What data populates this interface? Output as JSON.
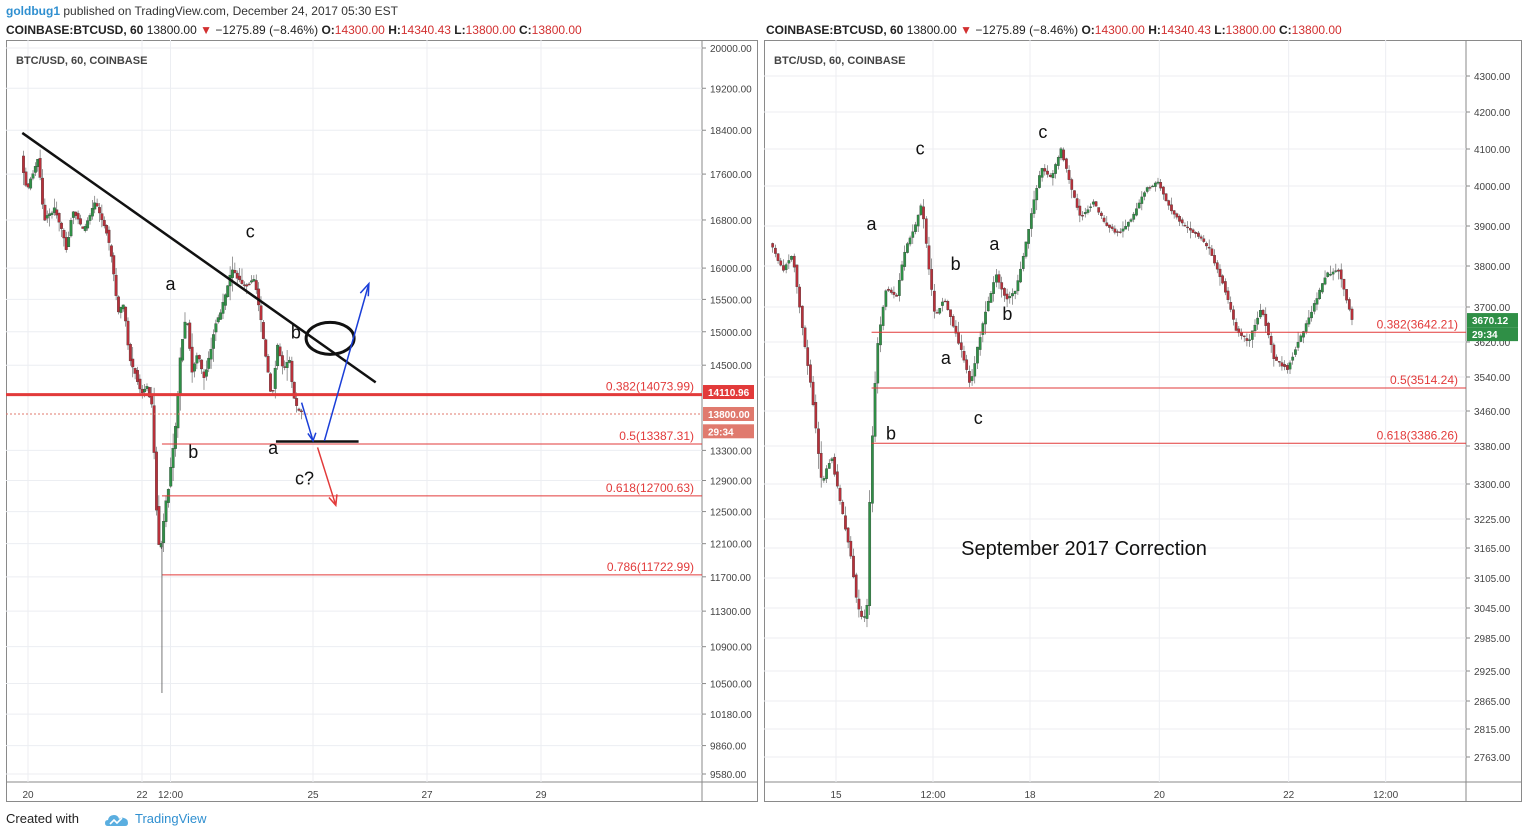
{
  "header": {
    "author": "goldbug1",
    "published_text": "published on TradingView.com, December 24, 2017 05:30 EST"
  },
  "colors": {
    "up": "#2f8f46",
    "down": "#b7303a",
    "fib": "#e23a3a",
    "brand": "#2f8fd0"
  },
  "footer": {
    "created_with": "Created with",
    "brand": "TradingView",
    "icon": "tradingview-cloud-icon"
  },
  "panels": [
    {
      "symbol": "COINBASE:BTCUSD, 60",
      "price": "13800.00",
      "arrow": "▼",
      "change": "−1275.89 (−8.46%)",
      "o_label": "O:",
      "o": "14300.00",
      "h_label": "H:",
      "h": "14340.43",
      "l_label": "L:",
      "l": "13800.00",
      "c_label": "C:",
      "c": "13800.00",
      "chart_label": "BTC/USD, 60, COINBASE"
    },
    {
      "symbol": "COINBASE:BTCUSD, 60",
      "price": "13800.00",
      "arrow": "▼",
      "change": "−1275.89 (−8.46%)",
      "o_label": "O:",
      "o": "14300.00",
      "h_label": "H:",
      "h": "14340.43",
      "l_label": "L:",
      "l": "13800.00",
      "c_label": "C:",
      "c": "13800.00",
      "chart_label": "BTC/USD, 60, COINBASE"
    }
  ],
  "chart_data": [
    {
      "type": "candlestick",
      "title": "BTC/USD, 60, COINBASE",
      "y_scale": "log",
      "y_ticks": [
        20000,
        19200,
        18400,
        17600,
        16800,
        16000,
        15500,
        15000,
        14500,
        13300,
        12900,
        12500,
        12100,
        11700,
        11300,
        10900,
        10500,
        10180,
        9860,
        9580
      ],
      "y_tick_labels": [
        "20000.00",
        "19200.00",
        "18400.00",
        "17600.00",
        "16800.00",
        "16000.00",
        "15500.00",
        "15000.00",
        "14500.00",
        "13300.00",
        "12900.00",
        "12500.00",
        "12100.00",
        "11700.00",
        "11300.00",
        "10900.00",
        "10500.00",
        "10180.00",
        "9860.00",
        "9580.00"
      ],
      "x_tick_labels": [
        "20",
        "22",
        "12:00",
        "25",
        "27",
        "29"
      ],
      "x_ticks_day": [
        20,
        22,
        22.5,
        25,
        27,
        29
      ],
      "x_range_day": [
        19.9,
        30.0
      ],
      "close_path": [
        [
          19.9,
          17900
        ],
        [
          20.0,
          17300
        ],
        [
          20.2,
          17900
        ],
        [
          20.3,
          16800
        ],
        [
          20.5,
          17000
        ],
        [
          20.7,
          16300
        ],
        [
          20.8,
          17000
        ],
        [
          21.0,
          16600
        ],
        [
          21.2,
          17100
        ],
        [
          21.4,
          16600
        ],
        [
          21.5,
          16100
        ],
        [
          21.6,
          15300
        ],
        [
          21.7,
          15400
        ],
        [
          21.8,
          14600
        ],
        [
          21.9,
          14400
        ],
        [
          22.0,
          14100
        ],
        [
          22.1,
          14200
        ],
        [
          22.2,
          13900
        ],
        [
          22.3,
          12100
        ],
        [
          22.35,
          12050
        ],
        [
          22.4,
          12400
        ],
        [
          22.5,
          12900
        ],
        [
          22.6,
          13500
        ],
        [
          22.7,
          14700
        ],
        [
          22.8,
          15300
        ],
        [
          22.9,
          14400
        ],
        [
          23.0,
          14700
        ],
        [
          23.1,
          14300
        ],
        [
          23.2,
          14600
        ],
        [
          23.3,
          15100
        ],
        [
          23.4,
          15300
        ],
        [
          23.5,
          15600
        ],
        [
          23.6,
          16000
        ],
        [
          23.8,
          15700
        ],
        [
          24.0,
          15800
        ],
        [
          24.1,
          15200
        ],
        [
          24.2,
          14600
        ],
        [
          24.3,
          14000
        ],
        [
          24.4,
          14800
        ],
        [
          24.5,
          14400
        ],
        [
          24.6,
          14600
        ],
        [
          24.7,
          13950
        ],
        [
          24.8,
          13800
        ]
      ],
      "waves": [
        {
          "label": "a",
          "day": 22.5,
          "price": 15650
        },
        {
          "label": "b",
          "day": 22.9,
          "price": 13200
        },
        {
          "label": "c",
          "day": 23.9,
          "price": 16500
        },
        {
          "label": "a",
          "day": 24.3,
          "price": 13250
        },
        {
          "label": "b",
          "day": 24.7,
          "price": 14900
        },
        {
          "label": "c?",
          "day": 24.85,
          "price": 12850
        }
      ],
      "fib_levels": [
        {
          "label": "0.382(14073.99)",
          "price": 14073.99,
          "from_day": 19.9
        },
        {
          "label": "0.5(13387.31)",
          "price": 13387.31,
          "from_day": 22.35
        },
        {
          "label": "0.618(12700.63)",
          "price": 12700.63,
          "from_day": 22.35
        },
        {
          "label": "0.786(11722.99)",
          "price": 11722.99,
          "from_day": 22.35
        }
      ],
      "price_tags": [
        {
          "label": "14110.96",
          "price": 14110.96,
          "color": "#e23a3a"
        },
        {
          "label": "13800.00",
          "price": 13800,
          "color": "#e07a6e"
        },
        {
          "label": "29:34",
          "price": 13560,
          "color": "#e07a6e"
        }
      ]
    },
    {
      "type": "candlestick",
      "title": "BTC/USD, 60, COINBASE",
      "y_scale": "linear",
      "y_ticks": [
        4300,
        4200,
        4100,
        4000,
        3900,
        3800,
        3700,
        3620,
        3540,
        3460,
        3380,
        3300,
        3225,
        3165,
        3105,
        3045,
        2985,
        2925,
        2865,
        2815,
        2763
      ],
      "y_tick_labels": [
        "4300.00",
        "4200.00",
        "4100.00",
        "4000.00",
        "3900.00",
        "3800.00",
        "3700.00",
        "3620.00",
        "3540.00",
        "3460.00",
        "3380.00",
        "3300.00",
        "3225.00",
        "3165.00",
        "3105.00",
        "3045.00",
        "2985.00",
        "2925.00",
        "2865.00",
        "2815.00",
        "2763.00"
      ],
      "x_tick_labels": [
        "15",
        "12:00",
        "18",
        "20",
        "22",
        "12:00"
      ],
      "x_ticks_day": [
        15,
        16.5,
        18,
        20,
        22,
        23.5
      ],
      "x_range_day": [
        14.0,
        23.0
      ],
      "close_path": [
        [
          14.0,
          3860
        ],
        [
          14.2,
          3790
        ],
        [
          14.35,
          3830
        ],
        [
          14.5,
          3650
        ],
        [
          14.65,
          3500
        ],
        [
          14.8,
          3300
        ],
        [
          14.95,
          3360
        ],
        [
          15.1,
          3250
        ],
        [
          15.25,
          3150
        ],
        [
          15.35,
          3050
        ],
        [
          15.45,
          3020
        ],
        [
          15.5,
          3050
        ],
        [
          15.55,
          3300
        ],
        [
          15.65,
          3600
        ],
        [
          15.8,
          3750
        ],
        [
          15.95,
          3720
        ],
        [
          16.1,
          3850
        ],
        [
          16.25,
          3900
        ],
        [
          16.35,
          3960
        ],
        [
          16.45,
          3800
        ],
        [
          16.55,
          3680
        ],
        [
          16.7,
          3720
        ],
        [
          16.85,
          3650
        ],
        [
          17.0,
          3580
        ],
        [
          17.1,
          3520
        ],
        [
          17.2,
          3600
        ],
        [
          17.35,
          3700
        ],
        [
          17.5,
          3780
        ],
        [
          17.65,
          3720
        ],
        [
          17.8,
          3740
        ],
        [
          17.95,
          3850
        ],
        [
          18.1,
          3980
        ],
        [
          18.2,
          4050
        ],
        [
          18.35,
          4020
        ],
        [
          18.5,
          4100
        ],
        [
          18.65,
          4000
        ],
        [
          18.8,
          3920
        ],
        [
          19.0,
          3960
        ],
        [
          19.2,
          3900
        ],
        [
          19.4,
          3880
        ],
        [
          19.6,
          3920
        ],
        [
          19.8,
          3990
        ],
        [
          20.0,
          4010
        ],
        [
          20.2,
          3940
        ],
        [
          20.4,
          3900
        ],
        [
          20.6,
          3880
        ],
        [
          20.8,
          3840
        ],
        [
          21.0,
          3760
        ],
        [
          21.2,
          3650
        ],
        [
          21.4,
          3620
        ],
        [
          21.6,
          3700
        ],
        [
          21.8,
          3580
        ],
        [
          22.0,
          3560
        ],
        [
          22.2,
          3630
        ],
        [
          22.4,
          3700
        ],
        [
          22.6,
          3780
        ],
        [
          22.8,
          3790
        ],
        [
          22.95,
          3700
        ],
        [
          23.0,
          3670
        ]
      ],
      "waves": [
        {
          "label": "a",
          "day": 15.55,
          "price": 3890
        },
        {
          "label": "b",
          "day": 15.85,
          "price": 3395
        },
        {
          "label": "c",
          "day": 16.3,
          "price": 4085
        },
        {
          "label": "a",
          "day": 16.7,
          "price": 3570
        },
        {
          "label": "b",
          "day": 16.85,
          "price": 3790
        },
        {
          "label": "c",
          "day": 17.2,
          "price": 3430
        },
        {
          "label": "a",
          "day": 17.45,
          "price": 3840
        },
        {
          "label": "b",
          "day": 17.65,
          "price": 3670
        },
        {
          "label": "c",
          "day": 18.2,
          "price": 4130
        }
      ],
      "fib_levels": [
        {
          "label": "0.382(3642.21)",
          "price": 3642.21,
          "from_day": 15.55
        },
        {
          "label": "0.5(3514.24)",
          "price": 3514.24,
          "from_day": 15.55
        },
        {
          "label": "0.618(3386.26)",
          "price": 3386.26,
          "from_day": 15.55
        }
      ],
      "price_tags": [
        {
          "label": "3670.12",
          "price": 3670.12,
          "color": "#2f8f46"
        },
        {
          "label": "29:34",
          "price": 3638,
          "color": "#2f8f46"
        }
      ],
      "annotation": "September 2017 Correction"
    }
  ]
}
